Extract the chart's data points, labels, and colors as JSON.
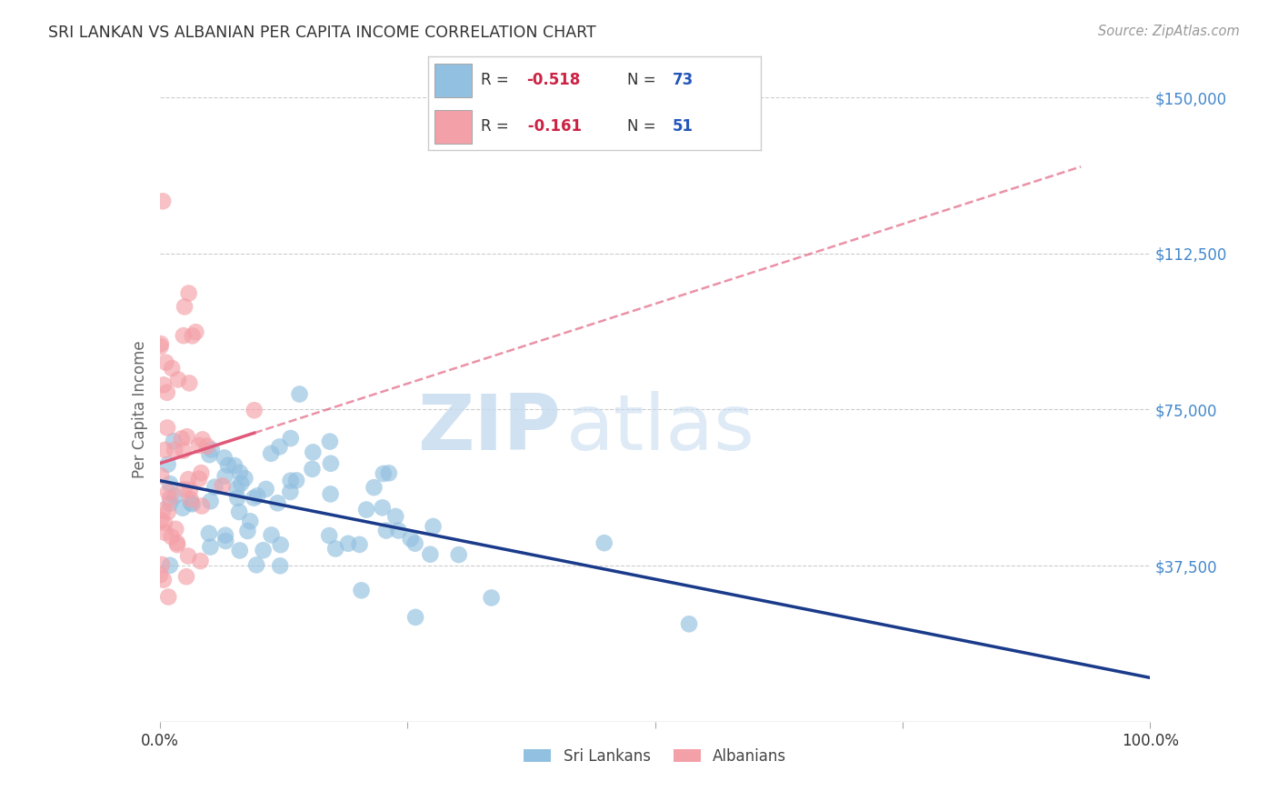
{
  "title": "SRI LANKAN VS ALBANIAN PER CAPITA INCOME CORRELATION CHART",
  "source_text": "Source: ZipAtlas.com",
  "ylabel": "Per Capita Income",
  "watermark_zip": "ZIP",
  "watermark_atlas": "atlas",
  "xlim": [
    0,
    1
  ],
  "ylim": [
    0,
    150000
  ],
  "yticks": [
    0,
    37500,
    75000,
    112500,
    150000
  ],
  "xtick_positions": [
    0,
    1
  ],
  "xtick_labels": [
    "0.0%",
    "100.0%"
  ],
  "right_ytick_labels": [
    "$150,000",
    "$112,500",
    "$75,000",
    "$37,500"
  ],
  "sri_lankan_color": "#92C0E0",
  "albanian_color": "#F4A0A8",
  "sri_lankan_line_color": "#1A3A8A",
  "albanian_line_color": "#E05878",
  "sri_lankans_label": "Sri Lankans",
  "albanians_label": "Albanians",
  "sri_lankan_R": -0.518,
  "sri_lankan_N": 73,
  "albanian_R": -0.161,
  "albanian_N": 51,
  "background_color": "#FFFFFF",
  "grid_color": "#CCCCCC",
  "title_color": "#333333",
  "axis_label_color": "#666666",
  "ytick_color": "#4488CC",
  "leg_r_color": "#CC2244",
  "leg_n_color": "#2255BB",
  "leg_text_color": "#333333"
}
